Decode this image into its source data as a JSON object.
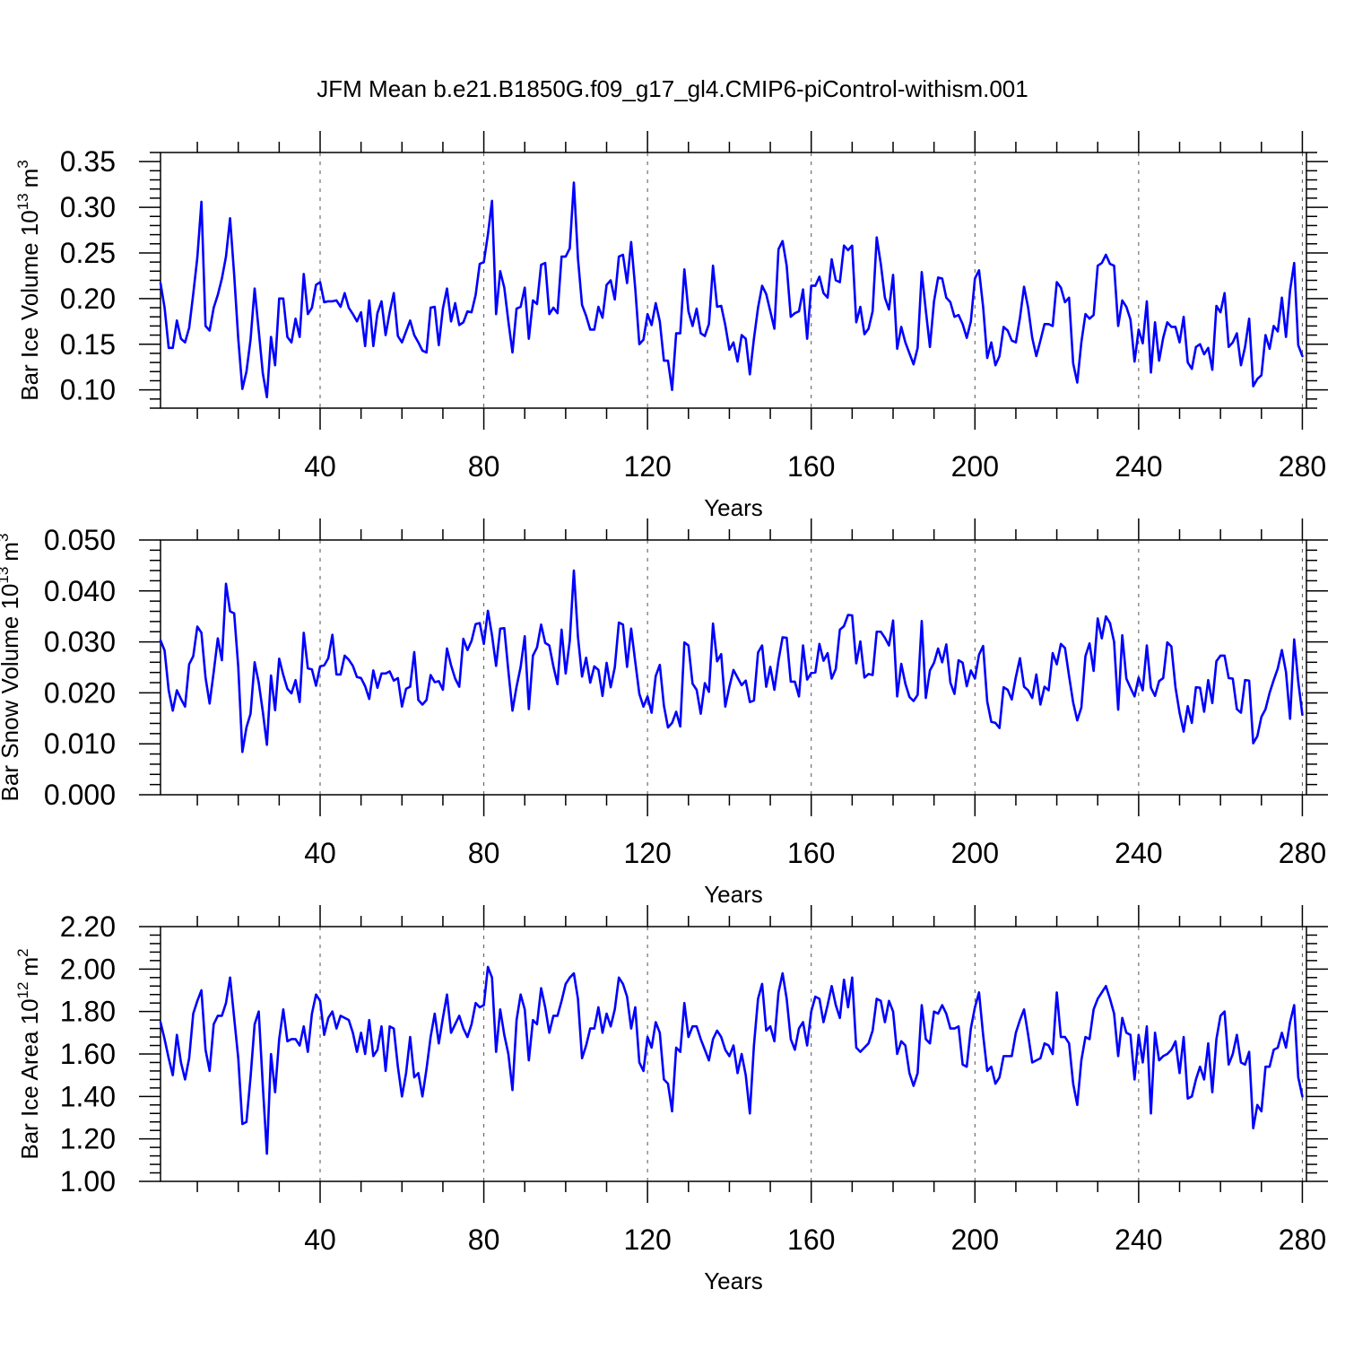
{
  "title": "JFM Mean b.e21.B1850G.f09_g17_gl4.CMIP6-piControl-withism.001",
  "colors": {
    "series": "#0000ff",
    "axis": "#000000",
    "grid": "#555555",
    "background": "#ffffff"
  },
  "chart_data": [
    {
      "type": "line",
      "title": "JFM Mean b.e21.B1850G.f09_g17_gl4.CMIP6-piControl-withism.001",
      "xlabel": "Years",
      "ylabel": "Bar Ice Volume 10",
      "ylabel_exp": "13",
      "ylabel_unit": "m",
      "ylabel_unit_exp": "3",
      "xlim": [
        1,
        281
      ],
      "ylim": [
        0.08,
        0.36
      ],
      "xticks": [
        40,
        80,
        120,
        160,
        200,
        240,
        280
      ],
      "xtick_labels": [
        "40",
        "80",
        "120",
        "160",
        "200",
        "240",
        "280"
      ],
      "yticks": [
        0.1,
        0.15,
        0.2,
        0.25,
        0.3,
        0.35
      ],
      "ytick_labels": [
        "0.10",
        "0.15",
        "0.20",
        "0.25",
        "0.30",
        "0.35"
      ],
      "grid": "dashed vertical lines at major x ticks",
      "x_start": 1,
      "series": [
        {
          "values": [
            0.217,
            0.19,
            0.146,
            0.146,
            0.176,
            0.156,
            0.152,
            0.168,
            0.205,
            0.245,
            0.306,
            0.17,
            0.165,
            0.19,
            0.204,
            0.222,
            0.246,
            0.288,
            0.226,
            0.156,
            0.101,
            0.12,
            0.155,
            0.211,
            0.165,
            0.118,
            0.092,
            0.158,
            0.127,
            0.2,
            0.2,
            0.158,
            0.152,
            0.178,
            0.158,
            0.227,
            0.183,
            0.19,
            0.215,
            0.218,
            0.196,
            0.197,
            0.197,
            0.198,
            0.191,
            0.206,
            0.19,
            0.183,
            0.175,
            0.185,
            0.148,
            0.198,
            0.148,
            0.184,
            0.197,
            0.16,
            0.185,
            0.206,
            0.159,
            0.152,
            0.164,
            0.176,
            0.16,
            0.152,
            0.143,
            0.141,
            0.19,
            0.191,
            0.149,
            0.189,
            0.211,
            0.175,
            0.195,
            0.171,
            0.174,
            0.186,
            0.185,
            0.204,
            0.238,
            0.24,
            0.27,
            0.307,
            0.183,
            0.23,
            0.212,
            0.175,
            0.141,
            0.189,
            0.191,
            0.212,
            0.156,
            0.198,
            0.194,
            0.237,
            0.239,
            0.183,
            0.19,
            0.184,
            0.246,
            0.246,
            0.255,
            0.327,
            0.244,
            0.193,
            0.181,
            0.166,
            0.166,
            0.191,
            0.179,
            0.215,
            0.22,
            0.199,
            0.246,
            0.248,
            0.217,
            0.262,
            0.211,
            0.15,
            0.155,
            0.183,
            0.171,
            0.195,
            0.175,
            0.132,
            0.132,
            0.1,
            0.162,
            0.162,
            0.232,
            0.186,
            0.17,
            0.189,
            0.162,
            0.159,
            0.172,
            0.236,
            0.191,
            0.192,
            0.171,
            0.144,
            0.152,
            0.131,
            0.16,
            0.156,
            0.117,
            0.156,
            0.19,
            0.214,
            0.205,
            0.186,
            0.167,
            0.254,
            0.263,
            0.236,
            0.18,
            0.184,
            0.186,
            0.21,
            0.156,
            0.214,
            0.214,
            0.224,
            0.206,
            0.201,
            0.243,
            0.22,
            0.218,
            0.258,
            0.253,
            0.258,
            0.174,
            0.191,
            0.161,
            0.167,
            0.186,
            0.267,
            0.238,
            0.201,
            0.188,
            0.226,
            0.145,
            0.169,
            0.152,
            0.14,
            0.128,
            0.146,
            0.229,
            0.187,
            0.147,
            0.197,
            0.223,
            0.222,
            0.201,
            0.196,
            0.18,
            0.182,
            0.172,
            0.157,
            0.175,
            0.222,
            0.231,
            0.191,
            0.135,
            0.152,
            0.127,
            0.137,
            0.169,
            0.165,
            0.154,
            0.152,
            0.179,
            0.213,
            0.19,
            0.157,
            0.137,
            0.154,
            0.172,
            0.172,
            0.17,
            0.218,
            0.212,
            0.196,
            0.201,
            0.129,
            0.108,
            0.152,
            0.183,
            0.178,
            0.182,
            0.236,
            0.239,
            0.248,
            0.238,
            0.236,
            0.17,
            0.198,
            0.191,
            0.177,
            0.131,
            0.166,
            0.151,
            0.197,
            0.119,
            0.174,
            0.132,
            0.157,
            0.174,
            0.169,
            0.169,
            0.152,
            0.18,
            0.13,
            0.123,
            0.147,
            0.15,
            0.139,
            0.146,
            0.122,
            0.192,
            0.185,
            0.206,
            0.147,
            0.152,
            0.162,
            0.127,
            0.147,
            0.178,
            0.104,
            0.112,
            0.116,
            0.16,
            0.145,
            0.17,
            0.164,
            0.201,
            0.158,
            0.209,
            0.239,
            0.149,
            0.137
          ]
        }
      ]
    },
    {
      "type": "line",
      "xlabel": "Years",
      "ylabel": "Bar Snow Volume 10",
      "ylabel_exp": "13",
      "ylabel_unit": "m",
      "ylabel_unit_exp": "3",
      "xlim": [
        1,
        281
      ],
      "ylim": [
        0.0,
        0.05
      ],
      "xticks": [
        40,
        80,
        120,
        160,
        200,
        240,
        280
      ],
      "xtick_labels": [
        "40",
        "80",
        "120",
        "160",
        "200",
        "240",
        "280"
      ],
      "yticks": [
        0.0,
        0.01,
        0.02,
        0.03,
        0.04,
        0.05
      ],
      "ytick_labels": [
        "0.000",
        "0.010",
        "0.020",
        "0.030",
        "0.040",
        "0.050"
      ],
      "grid": "dashed vertical lines at major x ticks",
      "x_start": 1,
      "series": [
        {
          "values": [
            0.0303,
            0.0283,
            0.0205,
            0.0165,
            0.0205,
            0.0188,
            0.0173,
            0.0256,
            0.0272,
            0.033,
            0.0318,
            0.023,
            0.0179,
            0.0241,
            0.0307,
            0.0264,
            0.0414,
            0.036,
            0.0356,
            0.0251,
            0.0084,
            0.0132,
            0.0159,
            0.026,
            0.022,
            0.0163,
            0.0098,
            0.0234,
            0.0166,
            0.0267,
            0.0235,
            0.0208,
            0.0199,
            0.0225,
            0.0182,
            0.0318,
            0.0248,
            0.0246,
            0.0214,
            0.0252,
            0.0254,
            0.0268,
            0.0314,
            0.0236,
            0.0236,
            0.0273,
            0.0265,
            0.0253,
            0.0231,
            0.0229,
            0.0213,
            0.0188,
            0.0244,
            0.021,
            0.0238,
            0.0238,
            0.0242,
            0.0224,
            0.0229,
            0.0173,
            0.0208,
            0.0212,
            0.028,
            0.0186,
            0.0177,
            0.0186,
            0.0235,
            0.0221,
            0.0223,
            0.0206,
            0.0287,
            0.0254,
            0.0228,
            0.0212,
            0.0306,
            0.0284,
            0.0302,
            0.0335,
            0.0337,
            0.0296,
            0.0361,
            0.0313,
            0.0253,
            0.0326,
            0.0327,
            0.0243,
            0.0165,
            0.0212,
            0.0251,
            0.0311,
            0.0168,
            0.0273,
            0.0289,
            0.0334,
            0.0298,
            0.0293,
            0.0252,
            0.0217,
            0.0324,
            0.0238,
            0.0302,
            0.044,
            0.031,
            0.0232,
            0.0269,
            0.022,
            0.0252,
            0.0245,
            0.0194,
            0.0259,
            0.0211,
            0.025,
            0.0338,
            0.0334,
            0.0251,
            0.0326,
            0.0261,
            0.0198,
            0.0173,
            0.0193,
            0.0161,
            0.0233,
            0.0255,
            0.0175,
            0.0132,
            0.0141,
            0.0163,
            0.0134,
            0.0299,
            0.0293,
            0.0218,
            0.0206,
            0.0159,
            0.0219,
            0.0202,
            0.0336,
            0.0262,
            0.0276,
            0.0173,
            0.0212,
            0.0245,
            0.023,
            0.0215,
            0.0224,
            0.0182,
            0.0185,
            0.0279,
            0.0293,
            0.0212,
            0.0251,
            0.0206,
            0.0264,
            0.0309,
            0.0308,
            0.0222,
            0.0222,
            0.0193,
            0.0293,
            0.0226,
            0.0239,
            0.024,
            0.0296,
            0.0263,
            0.0278,
            0.0228,
            0.0247,
            0.0324,
            0.0331,
            0.0353,
            0.0352,
            0.0258,
            0.0301,
            0.023,
            0.0237,
            0.0235,
            0.032,
            0.032,
            0.0308,
            0.0293,
            0.0342,
            0.0193,
            0.0257,
            0.0218,
            0.0192,
            0.0184,
            0.0196,
            0.0341,
            0.019,
            0.0244,
            0.0259,
            0.0287,
            0.026,
            0.0295,
            0.022,
            0.0198,
            0.0264,
            0.0259,
            0.0213,
            0.0244,
            0.0228,
            0.0275,
            0.0292,
            0.0183,
            0.0143,
            0.0141,
            0.0131,
            0.0211,
            0.0206,
            0.0187,
            0.0231,
            0.0268,
            0.0212,
            0.0205,
            0.019,
            0.0236,
            0.0177,
            0.0212,
            0.0205,
            0.0278,
            0.0256,
            0.0296,
            0.0288,
            0.0233,
            0.0181,
            0.0146,
            0.0171,
            0.0272,
            0.0297,
            0.0243,
            0.0346,
            0.0307,
            0.035,
            0.0337,
            0.03,
            0.0167,
            0.0313,
            0.0228,
            0.021,
            0.0193,
            0.023,
            0.0205,
            0.0293,
            0.021,
            0.0194,
            0.0223,
            0.0229,
            0.0299,
            0.0291,
            0.0211,
            0.0161,
            0.0124,
            0.0174,
            0.0141,
            0.0211,
            0.021,
            0.0163,
            0.0225,
            0.018,
            0.0262,
            0.0273,
            0.0273,
            0.0229,
            0.0228,
            0.0168,
            0.0161,
            0.0225,
            0.0224,
            0.0101,
            0.0115,
            0.0153,
            0.0168,
            0.02,
            0.0225,
            0.0248,
            0.0284,
            0.0241,
            0.0149,
            0.0305,
            0.0222,
            0.0157
          ]
        }
      ]
    },
    {
      "type": "line",
      "xlabel": "Years",
      "ylabel": "Bar Ice Area 10",
      "ylabel_exp": "12",
      "ylabel_unit": "m",
      "ylabel_unit_exp": "2",
      "xlim": [
        1,
        281
      ],
      "ylim": [
        1.0,
        2.2
      ],
      "xticks": [
        40,
        80,
        120,
        160,
        200,
        240,
        280
      ],
      "xtick_labels": [
        "40",
        "80",
        "120",
        "160",
        "200",
        "240",
        "280"
      ],
      "yticks": [
        1.0,
        1.2,
        1.4,
        1.6,
        1.8,
        2.0,
        2.2
      ],
      "ytick_labels": [
        "1.00",
        "1.20",
        "1.40",
        "1.60",
        "1.80",
        "2.00",
        "2.20"
      ],
      "grid": "dashed vertical lines at major x ticks",
      "x_start": 1,
      "series": [
        {
          "values": [
            1.75,
            1.67,
            1.58,
            1.5,
            1.69,
            1.56,
            1.48,
            1.58,
            1.79,
            1.85,
            1.9,
            1.62,
            1.52,
            1.74,
            1.78,
            1.78,
            1.84,
            1.96,
            1.77,
            1.58,
            1.27,
            1.28,
            1.49,
            1.74,
            1.8,
            1.45,
            1.13,
            1.6,
            1.42,
            1.67,
            1.81,
            1.66,
            1.67,
            1.67,
            1.64,
            1.73,
            1.61,
            1.79,
            1.88,
            1.85,
            1.69,
            1.77,
            1.8,
            1.72,
            1.78,
            1.77,
            1.76,
            1.7,
            1.61,
            1.7,
            1.6,
            1.76,
            1.59,
            1.62,
            1.73,
            1.52,
            1.73,
            1.72,
            1.54,
            1.4,
            1.51,
            1.68,
            1.49,
            1.51,
            1.4,
            1.53,
            1.68,
            1.79,
            1.65,
            1.77,
            1.88,
            1.7,
            1.74,
            1.78,
            1.72,
            1.68,
            1.74,
            1.84,
            1.82,
            1.83,
            2.01,
            1.96,
            1.61,
            1.81,
            1.69,
            1.6,
            1.43,
            1.76,
            1.88,
            1.81,
            1.57,
            1.76,
            1.74,
            1.91,
            1.82,
            1.7,
            1.78,
            1.78,
            1.85,
            1.93,
            1.96,
            1.98,
            1.86,
            1.58,
            1.64,
            1.72,
            1.72,
            1.82,
            1.7,
            1.79,
            1.73,
            1.81,
            1.96,
            1.93,
            1.87,
            1.72,
            1.82,
            1.56,
            1.52,
            1.68,
            1.63,
            1.75,
            1.7,
            1.48,
            1.46,
            1.33,
            1.63,
            1.61,
            1.84,
            1.68,
            1.73,
            1.73,
            1.67,
            1.62,
            1.57,
            1.67,
            1.71,
            1.68,
            1.62,
            1.59,
            1.64,
            1.51,
            1.6,
            1.5,
            1.32,
            1.64,
            1.86,
            1.93,
            1.71,
            1.73,
            1.66,
            1.89,
            1.98,
            1.86,
            1.67,
            1.62,
            1.72,
            1.75,
            1.64,
            1.8,
            1.87,
            1.86,
            1.75,
            1.83,
            1.92,
            1.83,
            1.77,
            1.95,
            1.82,
            1.96,
            1.63,
            1.61,
            1.63,
            1.65,
            1.71,
            1.86,
            1.85,
            1.75,
            1.85,
            1.8,
            1.6,
            1.66,
            1.64,
            1.51,
            1.45,
            1.51,
            1.83,
            1.67,
            1.65,
            1.8,
            1.79,
            1.83,
            1.79,
            1.72,
            1.72,
            1.73,
            1.55,
            1.54,
            1.72,
            1.82,
            1.89,
            1.69,
            1.52,
            1.54,
            1.46,
            1.49,
            1.59,
            1.59,
            1.59,
            1.7,
            1.76,
            1.81,
            1.69,
            1.56,
            1.57,
            1.58,
            1.65,
            1.64,
            1.6,
            1.89,
            1.68,
            1.68,
            1.65,
            1.46,
            1.36,
            1.57,
            1.68,
            1.67,
            1.81,
            1.86,
            1.89,
            1.92,
            1.86,
            1.79,
            1.59,
            1.77,
            1.7,
            1.69,
            1.48,
            1.69,
            1.56,
            1.73,
            1.32,
            1.7,
            1.57,
            1.59,
            1.6,
            1.62,
            1.66,
            1.51,
            1.68,
            1.39,
            1.4,
            1.48,
            1.54,
            1.48,
            1.65,
            1.42,
            1.67,
            1.78,
            1.8,
            1.55,
            1.6,
            1.69,
            1.56,
            1.55,
            1.61,
            1.25,
            1.36,
            1.33,
            1.54,
            1.54,
            1.62,
            1.63,
            1.7,
            1.63,
            1.75,
            1.83,
            1.49,
            1.4
          ]
        }
      ]
    }
  ]
}
